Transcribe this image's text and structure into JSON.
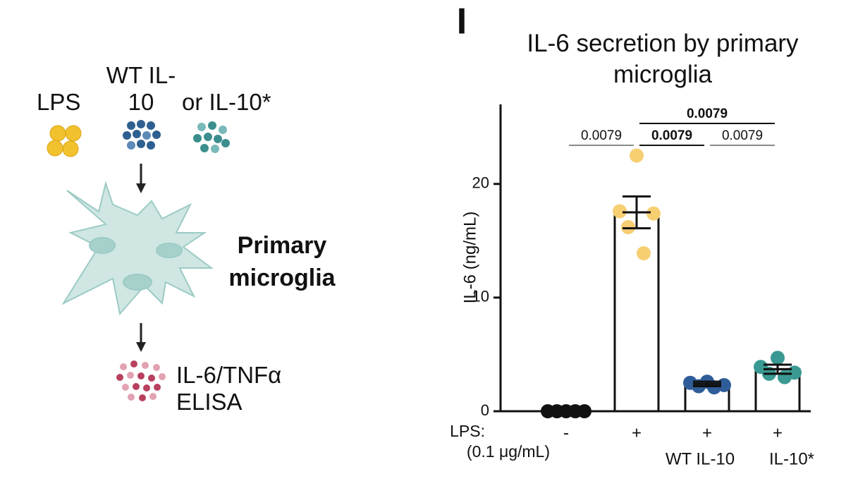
{
  "panel_label": "I",
  "diagram": {
    "lps": "LPS",
    "wt_il10": "WT IL-10",
    "or_il10_star": "or IL-10*",
    "cell": "Primary microglia",
    "readout": "IL-6/TNFα ELISA"
  },
  "chart_data": {
    "type": "bar_scatter",
    "title": "IL-6 secretion by primary microglia",
    "y_label": "IL-6 (ng/mL)",
    "row_label_1": "LPS:",
    "row_label_2": "(0.1 μg/mL)",
    "categories": [
      "-",
      "+",
      "+",
      "+"
    ],
    "treatments": [
      null,
      null,
      "WT IL-10",
      "IL-10*"
    ],
    "values": [
      0.05,
      17.5,
      2.4,
      3.7
    ],
    "errors": [
      0.05,
      1.4,
      0.2,
      0.4
    ],
    "points": [
      [
        0,
        0,
        0,
        0,
        0
      ],
      [
        22.5,
        17.6,
        17.4,
        16.2,
        13.9
      ],
      [
        2.6,
        2.5,
        2.3,
        2.2,
        2.1
      ],
      [
        4.7,
        3.9,
        3.4,
        3.3,
        3.0
      ]
    ],
    "colors": [
      "#111111",
      "#f6cf73",
      "#2f5d99",
      "#3a9a93"
    ],
    "ylim": [
      0,
      27
    ],
    "yticks": [
      0,
      10,
      20
    ],
    "significance": [
      {
        "label": "0.0079",
        "groups": [
          0,
          1
        ],
        "bold": false
      },
      {
        "label": "0.0079",
        "groups": [
          1,
          2
        ],
        "bold": true
      },
      {
        "label": "0.0079",
        "groups": [
          2,
          3
        ],
        "bold": false
      },
      {
        "label": "0.0079",
        "groups": [
          1,
          3
        ],
        "bold": true
      }
    ]
  }
}
